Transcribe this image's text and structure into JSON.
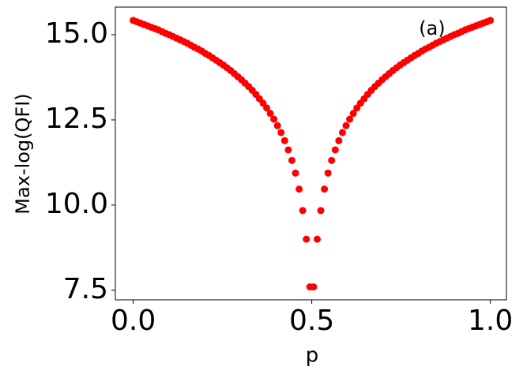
{
  "chart_data": {
    "type": "scatter",
    "xlabel": "p",
    "ylabel": "Max-log(QFI)",
    "annotation": {
      "text": "(a)",
      "x": 0.8,
      "y": 15.16
    },
    "color": "#ff0000",
    "x": [
      0,
      0.0101,
      0.0202,
      0.0303,
      0.0404,
      0.0505,
      0.0606,
      0.0707,
      0.0808,
      0.0909,
      0.101,
      0.1111,
      0.1212,
      0.1313,
      0.1414,
      0.1515,
      0.1616,
      0.1717,
      0.1818,
      0.1919,
      0.202,
      0.2121,
      0.2222,
      0.2323,
      0.2424,
      0.2525,
      0.2626,
      0.2727,
      0.2828,
      0.2929,
      0.303,
      0.3131,
      0.3232,
      0.3333,
      0.3434,
      0.3535,
      0.3636,
      0.3737,
      0.3838,
      0.3939,
      0.404,
      0.4141,
      0.4242,
      0.4343,
      0.4444,
      0.4545,
      0.4646,
      0.4747,
      0.4848,
      0.4949,
      0.5051,
      0.5152,
      0.5253,
      0.5354,
      0.5455,
      0.5556,
      0.5657,
      0.5758,
      0.5859,
      0.596,
      0.6061,
      0.6162,
      0.6263,
      0.6364,
      0.6465,
      0.6566,
      0.6667,
      0.6768,
      0.6869,
      0.697,
      0.7071,
      0.7172,
      0.7273,
      0.7374,
      0.7475,
      0.7576,
      0.7677,
      0.7778,
      0.7879,
      0.798,
      0.8081,
      0.8182,
      0.8283,
      0.8384,
      0.8485,
      0.8586,
      0.8687,
      0.8788,
      0.8889,
      0.899,
      0.9091,
      0.9192,
      0.9293,
      0.9394,
      0.9495,
      0.9596,
      0.9697,
      0.9798,
      0.9899,
      1
    ],
    "values": [
      15.42,
      15.38,
      15.34,
      15.3,
      15.26,
      15.22,
      15.18,
      15.14,
      15.09,
      15.04,
      15.0,
      14.95,
      14.9,
      14.85,
      14.8,
      14.75,
      14.69,
      14.63,
      14.58,
      14.52,
      14.45,
      14.39,
      14.32,
      14.25,
      14.18,
      14.11,
      14.03,
      13.95,
      13.86,
      13.77,
      13.68,
      13.58,
      13.48,
      13.37,
      13.25,
      13.12,
      12.99,
      12.85,
      12.69,
      12.52,
      12.33,
      12.13,
      11.89,
      11.62,
      11.31,
      10.94,
      10.47,
      9.84,
      9.0,
      7.6,
      7.6,
      9.0,
      9.84,
      10.47,
      10.94,
      11.31,
      11.62,
      11.89,
      12.13,
      12.33,
      12.52,
      12.69,
      12.85,
      12.99,
      13.12,
      13.25,
      13.37,
      13.48,
      13.58,
      13.68,
      13.77,
      13.86,
      13.95,
      14.03,
      14.11,
      14.18,
      14.25,
      14.32,
      14.39,
      14.45,
      14.52,
      14.58,
      14.63,
      14.69,
      14.75,
      14.8,
      14.85,
      14.9,
      14.95,
      15.0,
      15.04,
      15.09,
      15.14,
      15.18,
      15.22,
      15.26,
      15.3,
      15.34,
      15.38,
      15.42
    ],
    "xlim": [
      -0.05,
      1.045
    ],
    "ylim": [
      7.22,
      15.81
    ],
    "xticks": [
      {
        "value": 0,
        "label": "0.0"
      },
      {
        "value": 0.5,
        "label": "0.5"
      },
      {
        "value": 1,
        "label": "1.0"
      }
    ],
    "yticks": [
      7.5,
      {
        "value": 10,
        "label": "10.0"
      },
      12.5,
      {
        "value": 15,
        "label": "15.0"
      }
    ]
  }
}
